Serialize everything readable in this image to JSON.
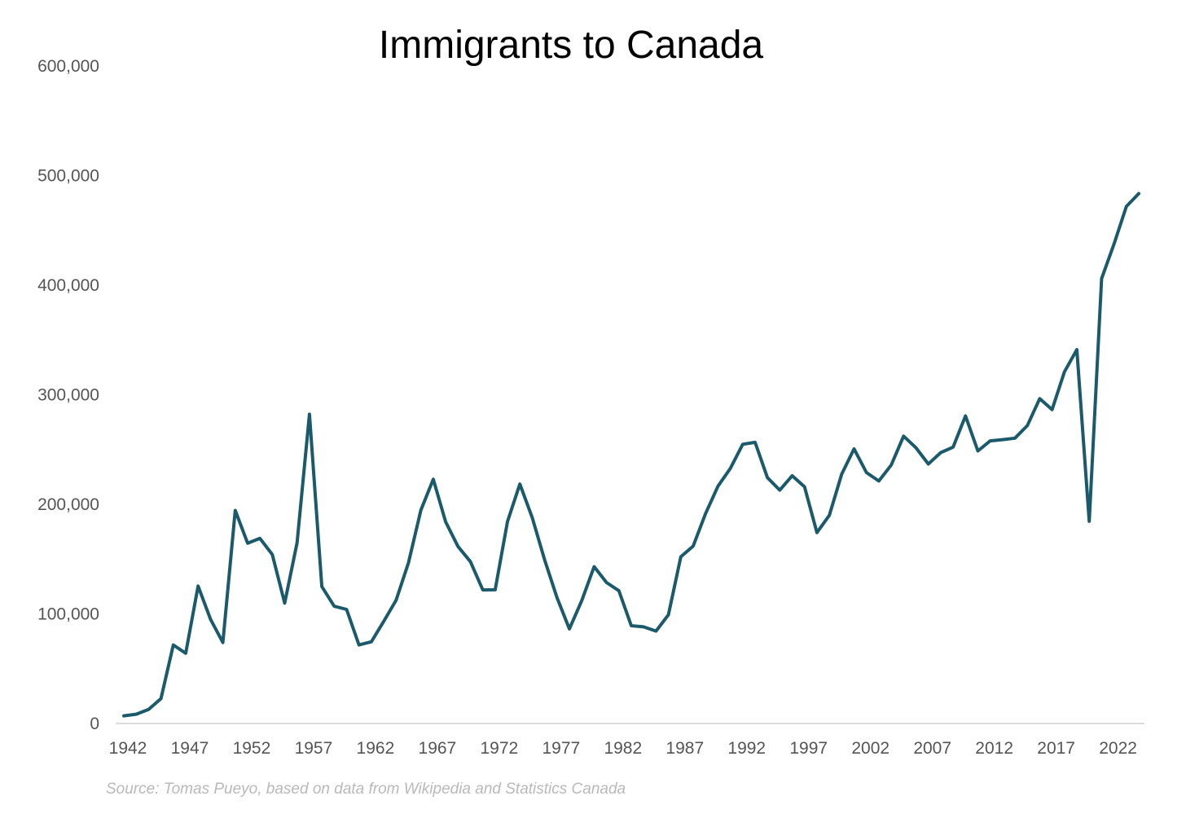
{
  "chart_data": {
    "type": "line",
    "title": "Immigrants to Canada",
    "xlabel": "",
    "ylabel": "",
    "source": "Source: Tomas Pueyo, based on data from Wikipedia and Statistics Canada",
    "x_ticks": [
      "1942",
      "1947",
      "1952",
      "1957",
      "1962",
      "1967",
      "1972",
      "1977",
      "1982",
      "1987",
      "1992",
      "1997",
      "2002",
      "2007",
      "2012",
      "2017",
      "2022"
    ],
    "y_ticks": [
      "0",
      "100,000",
      "200,000",
      "300,000",
      "400,000",
      "500,000",
      "600,000"
    ],
    "ylim": [
      0,
      600000
    ],
    "xlim": [
      1942,
      2024
    ],
    "grid": false,
    "legend": "none",
    "color": "#1b5a6b",
    "series": [
      {
        "x": [
          1942,
          1943,
          1944,
          1945,
          1946,
          1947,
          1948,
          1949,
          1950,
          1951,
          1952,
          1953,
          1954,
          1955,
          1956,
          1957,
          1958,
          1959,
          1960,
          1961,
          1962,
          1963,
          1964,
          1965,
          1966,
          1967,
          1968,
          1969,
          1970,
          1971,
          1972,
          1973,
          1974,
          1975,
          1976,
          1977,
          1978,
          1979,
          1980,
          1981,
          1982,
          1983,
          1984,
          1985,
          1986,
          1987,
          1988,
          1989,
          1990,
          1991,
          1992,
          1993,
          1994,
          1995,
          1996,
          1997,
          1998,
          1999,
          2000,
          2001,
          2002,
          2003,
          2004,
          2005,
          2006,
          2007,
          2008,
          2009,
          2010,
          2011,
          2012,
          2013,
          2014,
          2015,
          2016,
          2017,
          2018,
          2019,
          2020,
          2021,
          2022,
          2023,
          2024
        ],
        "values": [
          7000,
          8500,
          12800,
          22700,
          71700,
          64100,
          125400,
          95200,
          73900,
          194400,
          164500,
          168900,
          154200,
          109900,
          164900,
          282200,
          125000,
          107000,
          104100,
          71700,
          74600,
          93200,
          112600,
          146800,
          194700,
          222900,
          184000,
          161500,
          147700,
          121900,
          122000,
          184200,
          218500,
          187900,
          149400,
          114900,
          86300,
          112100,
          143100,
          128600,
          121100,
          89200,
          88200,
          84300,
          99200,
          152100,
          161900,
          191600,
          216500,
          232800,
          254800,
          256600,
          224400,
          212900,
          226100,
          216000,
          174200,
          189900,
          227500,
          250600,
          229000,
          221300,
          235800,
          262200,
          251600,
          236800,
          247200,
          252200,
          280700,
          248700,
          257900,
          259000,
          260400,
          271800,
          296400,
          286500,
          321000,
          341200,
          184500,
          406000,
          437500,
          471800,
          483600
        ]
      }
    ]
  }
}
